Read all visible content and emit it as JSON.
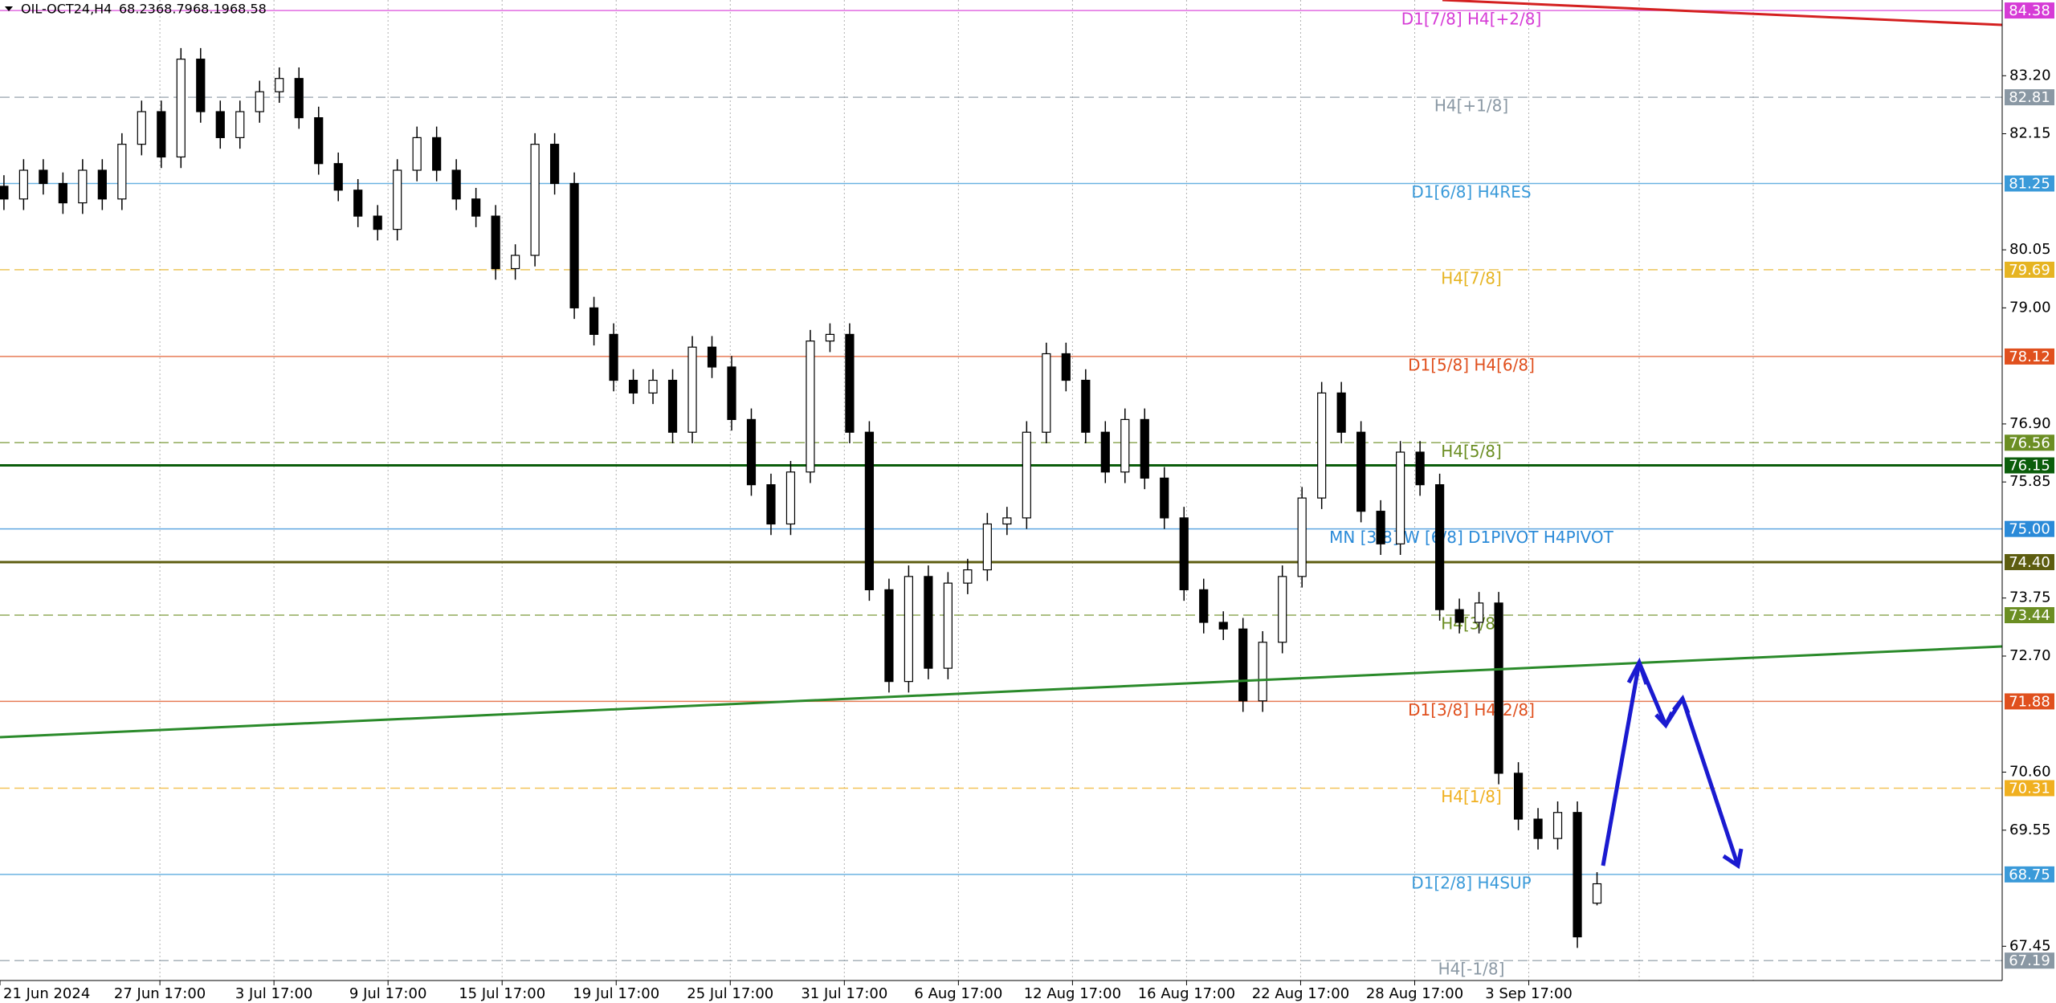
{
  "chart_data": {
    "type": "candlestick",
    "title": "OIL-OCT24,H4",
    "open": [
      81.2,
      80.97,
      81.49,
      81.25,
      80.9,
      81.49,
      80.97,
      81.96,
      82.55,
      81.73,
      83.5,
      82.55,
      82.08,
      82.55,
      82.91,
      83.15,
      82.44,
      81.61,
      81.13,
      80.66,
      80.42,
      81.49,
      82.08,
      81.49,
      80.97,
      80.66,
      79.71,
      79.95,
      81.96,
      81.25,
      79.0,
      78.52,
      77.69,
      77.46,
      77.69,
      76.75,
      78.29,
      77.93,
      76.98,
      75.8,
      75.09,
      76.03,
      78.4,
      78.52,
      76.75,
      73.9,
      72.24,
      74.14,
      72.48,
      74.02,
      74.26,
      75.09,
      75.2,
      76.75,
      78.17,
      77.69,
      76.75,
      76.03,
      76.98,
      75.92,
      75.2,
      73.9,
      73.31,
      73.19,
      71.89,
      72.95,
      74.14,
      75.56,
      77.46,
      76.75,
      75.32,
      74.73,
      76.39,
      75.8,
      73.54,
      73.31,
      73.66,
      70.58,
      69.75,
      69.4,
      69.87,
      68.23
    ],
    "high": [
      81.4,
      81.69,
      81.69,
      81.45,
      81.69,
      81.69,
      82.16,
      82.75,
      82.75,
      83.7,
      83.7,
      82.75,
      82.75,
      83.11,
      83.35,
      83.35,
      82.64,
      81.81,
      81.33,
      80.86,
      81.69,
      82.28,
      82.28,
      81.69,
      81.17,
      80.86,
      80.15,
      82.16,
      82.16,
      81.45,
      79.2,
      78.72,
      77.89,
      77.89,
      77.89,
      78.49,
      78.49,
      78.13,
      77.18,
      76.0,
      76.23,
      78.6,
      78.72,
      78.72,
      76.95,
      74.1,
      74.34,
      74.34,
      74.22,
      74.46,
      75.29,
      75.4,
      76.95,
      78.37,
      78.37,
      77.89,
      76.95,
      77.18,
      77.18,
      76.12,
      75.4,
      74.1,
      73.51,
      73.39,
      73.15,
      74.34,
      75.76,
      77.66,
      77.66,
      76.95,
      75.52,
      76.59,
      76.59,
      76.0,
      73.74,
      73.86,
      73.86,
      70.78,
      69.95,
      70.07,
      70.07,
      68.79
    ],
    "low": [
      80.77,
      80.77,
      81.05,
      80.7,
      80.7,
      80.77,
      80.77,
      81.76,
      81.53,
      81.53,
      82.35,
      81.88,
      81.88,
      82.35,
      82.71,
      82.24,
      81.41,
      80.93,
      80.46,
      80.22,
      80.22,
      81.29,
      81.29,
      80.77,
      80.46,
      79.51,
      79.51,
      79.75,
      81.05,
      78.8,
      78.32,
      77.49,
      77.26,
      77.26,
      76.55,
      76.55,
      77.73,
      76.78,
      75.6,
      74.89,
      74.89,
      75.83,
      78.2,
      76.55,
      73.7,
      72.04,
      72.04,
      72.28,
      72.28,
      73.82,
      74.06,
      74.89,
      75.0,
      76.55,
      77.49,
      76.55,
      75.83,
      75.83,
      75.72,
      75.0,
      73.7,
      73.11,
      72.99,
      71.69,
      71.69,
      72.75,
      73.94,
      75.36,
      76.55,
      75.12,
      74.53,
      74.53,
      75.6,
      73.34,
      73.11,
      73.11,
      70.38,
      69.55,
      69.2,
      69.2,
      67.42,
      68.19
    ],
    "close": [
      80.97,
      81.49,
      81.25,
      80.9,
      81.49,
      80.97,
      81.96,
      82.55,
      81.73,
      83.5,
      82.55,
      82.08,
      82.55,
      82.91,
      83.15,
      82.44,
      81.61,
      81.13,
      80.66,
      80.42,
      81.49,
      82.08,
      81.49,
      80.97,
      80.66,
      79.71,
      79.95,
      81.96,
      81.25,
      79.0,
      78.52,
      77.69,
      77.46,
      77.69,
      76.75,
      78.29,
      77.93,
      76.98,
      75.8,
      75.09,
      76.03,
      78.4,
      78.52,
      76.75,
      73.9,
      72.24,
      74.14,
      72.48,
      74.02,
      74.26,
      75.09,
      75.2,
      76.75,
      78.17,
      77.69,
      76.75,
      76.03,
      76.98,
      75.92,
      75.2,
      73.9,
      73.31,
      73.19,
      71.89,
      72.95,
      74.14,
      75.56,
      77.46,
      76.75,
      75.32,
      74.73,
      76.39,
      75.8,
      73.54,
      73.31,
      73.66,
      70.58,
      69.75,
      69.4,
      69.87,
      67.62,
      68.58
    ],
    "up_color": "#ffffff",
    "down_color": "#000000",
    "xlim": [
      -0.2,
      101.6
    ],
    "xticks": [
      {
        "value": -0.2,
        "label": "21 Jun 2024"
      },
      {
        "value": 7.93,
        "label": "27 Jun 17:00"
      },
      {
        "value": 13.73,
        "label": "3 Jul 17:00"
      },
      {
        "value": 19.53,
        "label": "9 Jul 17:00"
      },
      {
        "value": 25.33,
        "label": "15 Jul 17:00"
      },
      {
        "value": 31.13,
        "label": "19 Jul 17:00"
      },
      {
        "value": 36.93,
        "label": "25 Jul 17:00"
      },
      {
        "value": 42.73,
        "label": "31 Jul 17:00"
      },
      {
        "value": 48.53,
        "label": "6 Aug 17:00"
      },
      {
        "value": 54.33,
        "label": "12 Aug 17:00"
      },
      {
        "value": 60.13,
        "label": "16 Aug 17:00"
      },
      {
        "value": 65.93,
        "label": "22 Aug 17:00"
      },
      {
        "value": 71.73,
        "label": "28 Aug 17:00"
      },
      {
        "value": 77.53,
        "label": "3 Sep 17:00"
      }
    ],
    "ylim": [
      66.83,
      84.57
    ],
    "yticks": [
      {
        "value": 83.2,
        "label": "83.20"
      },
      82.15,
      {
        "value": 80.05,
        "label": "80.05"
      },
      {
        "value": 79.0,
        "label": "79.00"
      },
      {
        "value": 76.9,
        "label": "76.90"
      },
      75.85,
      73.75,
      {
        "value": 72.7,
        "label": "72.70"
      },
      {
        "value": 70.6,
        "label": "70.60"
      },
      69.55,
      67.45
    ],
    "levels": [
      {
        "value": 84.38,
        "label": "D1[7/8] H4[+2/8]",
        "color": "#d63bd6",
        "dashed": false
      },
      {
        "value": 82.81,
        "label": "H4[+1/8]",
        "color": "#8a98a4",
        "dashed": true
      },
      {
        "value": 81.25,
        "label": "D1[6/8] H4RES",
        "color": "#3a9ad9",
        "dashed": false
      },
      {
        "value": 79.69,
        "label": "H4[7/8]",
        "color": "#e6b422",
        "dashed": true
      },
      {
        "value": 78.12,
        "label": "D1[5/8] H4[6/8]",
        "color": "#e0501e",
        "dashed": false
      },
      {
        "value": 76.56,
        "label": "H4[5/8]",
        "color": "#6b8e23",
        "dashed": true
      },
      {
        "value": 76.15,
        "color": "#0b5d0b",
        "dashed": false
      },
      {
        "value": 75.0,
        "value_label": "75.00",
        "label": "MN [3/8]  W [6/8] D1PIVOT H4PIVOT",
        "color": "#2a8ad8",
        "dashed": false
      },
      {
        "value": 74.4,
        "value_label": "74.40",
        "color": "#5d5d10",
        "dashed": false
      },
      {
        "value": 73.44,
        "label": "H4[3/8]",
        "color": "#6b8e23",
        "dashed": true
      },
      {
        "value": 71.88,
        "label": "D1[3/8] H4[2/8]",
        "color": "#e0501e",
        "dashed": false
      },
      {
        "value": 70.31,
        "label": "H4[1/8]",
        "color": "#f0b020",
        "dashed": true
      },
      {
        "value": 68.75,
        "label": "D1[2/8] H4SUP",
        "color": "#3a9ad9",
        "dashed": false
      },
      {
        "value": 67.19,
        "label": "H4[-1/8]",
        "color": "#8a98a4",
        "dashed": true
      }
    ]
  }
}
